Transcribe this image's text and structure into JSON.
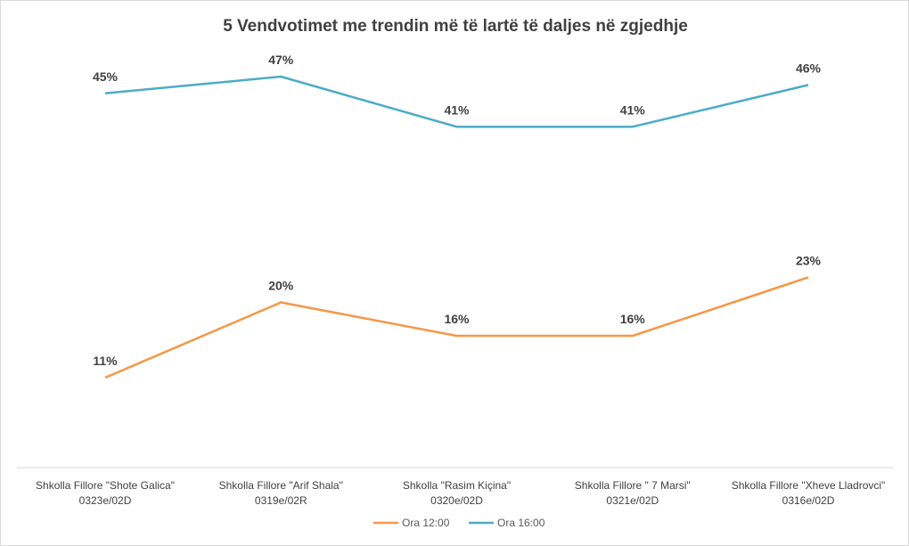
{
  "chart_data": {
    "type": "line",
    "title": "5 Vendvotimet me trendin më të lartë të daljes në zgjedhje",
    "categories": [
      [
        "Shkolla Fillore \"Shote Galica\"",
        "0323e/02D"
      ],
      [
        "Shkolla Fillore \"Arif Shala\"",
        "0319e/02R"
      ],
      [
        "Shkolla \"Rasim Kiçina\"",
        "0320e/02D"
      ],
      [
        "Shkolla Fillore \" 7 Marsi\"",
        "0321e/02D"
      ],
      [
        "Shkolla Fillore \"Xheve Lladrovci\"",
        "0316e/02D"
      ]
    ],
    "series": [
      {
        "name": "Ora 12:00",
        "color": "#f79646",
        "values": [
          11,
          20,
          16,
          16,
          23
        ],
        "labels": [
          "11%",
          "20%",
          "16%",
          "16%",
          "23%"
        ]
      },
      {
        "name": "Ora 16:00",
        "color": "#4bacc6",
        "values": [
          45,
          47,
          41,
          41,
          46
        ],
        "labels": [
          "45%",
          "47%",
          "41%",
          "41%",
          "46%"
        ]
      }
    ],
    "ylim": [
      0,
      52
    ],
    "grid": false,
    "legend": "bottom"
  }
}
